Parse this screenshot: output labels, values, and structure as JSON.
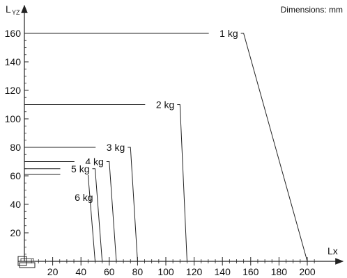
{
  "chart_data": {
    "type": "line",
    "title": "",
    "note": "Dimensions: mm",
    "xlabel": "Lx",
    "ylabel_main": "L",
    "ylabel_sub": "YZ",
    "xlim": [
      0,
      200
    ],
    "ylim": [
      0,
      160
    ],
    "x_ticks": [
      20,
      40,
      60,
      80,
      100,
      120,
      140,
      160,
      180,
      200
    ],
    "y_ticks": [
      20,
      40,
      60,
      80,
      100,
      120,
      140,
      160
    ],
    "grid": false,
    "series": [
      {
        "name": "1 kg",
        "points": [
          [
            0,
            160
          ],
          [
            155,
            160
          ],
          [
            200,
            0
          ]
        ]
      },
      {
        "name": "2 kg",
        "points": [
          [
            0,
            110
          ],
          [
            110,
            110
          ],
          [
            115,
            0
          ]
        ]
      },
      {
        "name": "3 kg",
        "points": [
          [
            0,
            80
          ],
          [
            75,
            80
          ],
          [
            80,
            0
          ]
        ]
      },
      {
        "name": "4 kg",
        "points": [
          [
            0,
            70
          ],
          [
            60,
            70
          ],
          [
            65,
            0
          ]
        ]
      },
      {
        "name": "5 kg",
        "points": [
          [
            0,
            65
          ],
          [
            50,
            65
          ],
          [
            55,
            0
          ]
        ]
      },
      {
        "name": "6 kg",
        "points": [
          [
            0,
            61
          ],
          [
            45,
            61
          ],
          [
            50,
            0
          ]
        ]
      }
    ]
  }
}
